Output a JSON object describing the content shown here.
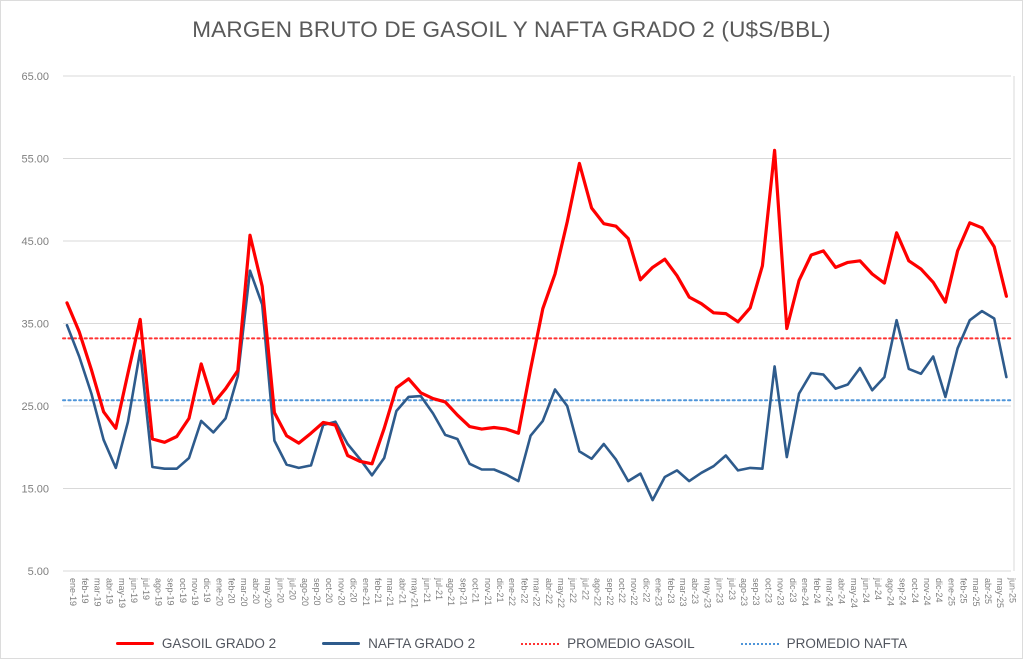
{
  "chart_data": {
    "type": "line",
    "title": "MARGEN BRUTO DE GASOIL Y NAFTA GRADO 2 (U$S/BBL)",
    "xlabel": "",
    "ylabel": "",
    "ylim": [
      5,
      65
    ],
    "ytick_step": 10,
    "ytick_labels": [
      "65.00",
      "55.00",
      "45.00",
      "35.00",
      "25.00",
      "15.00",
      "5.00"
    ],
    "grid": "horizontal",
    "legend_position": "bottom",
    "categories": [
      "ene-19",
      "feb-19",
      "mar-19",
      "abr-19",
      "may-19",
      "jun-19",
      "jul-19",
      "ago-19",
      "sep-19",
      "oct-19",
      "nov-19",
      "dic-19",
      "ene-20",
      "feb-20",
      "mar-20",
      "abr-20",
      "may-20",
      "jun-20",
      "jul-20",
      "ago-20",
      "sep-20",
      "oct-20",
      "nov-20",
      "dic-20",
      "ene-21",
      "feb-21",
      "mar-21",
      "abr-21",
      "may-21",
      "jun-21",
      "jul-21",
      "ago-21",
      "sep-21",
      "oct-21",
      "nov-21",
      "dic-21",
      "ene-22",
      "feb-22",
      "mar-22",
      "abr-22",
      "may-22",
      "jun-22",
      "jul-22",
      "ago-22",
      "sep-22",
      "oct-22",
      "nov-22",
      "dic-22",
      "ene-23",
      "feb-23",
      "mar-23",
      "abr-23",
      "may-23",
      "jun-23",
      "jul-23",
      "ago-23",
      "sep-23",
      "oct-23",
      "nov-23",
      "dic-23",
      "ene-24",
      "feb-24",
      "mar-24",
      "abr-24",
      "may-24",
      "jun-24",
      "jul-24",
      "ago-24",
      "sep-24",
      "oct-24",
      "nov-24",
      "dic-24",
      "ene-25",
      "feb-25",
      "mar-25",
      "abr-25",
      "may-25",
      "jun-25"
    ],
    "series": [
      {
        "name": "GASOIL GRADO 2",
        "color": "#ff0000",
        "style": "solid",
        "width": 3.2,
        "values": [
          37.5,
          34.0,
          29.4,
          24.3,
          22.3,
          29.0,
          35.5,
          21.0,
          20.6,
          21.3,
          23.5,
          30.1,
          25.3,
          27.1,
          29.3,
          45.7,
          39.5,
          24.2,
          21.4,
          20.5,
          21.7,
          23.0,
          22.7,
          19.0,
          18.3,
          18.0,
          22.3,
          27.2,
          28.3,
          26.6,
          25.9,
          25.5,
          23.9,
          22.5,
          22.2,
          22.4,
          22.2,
          21.7,
          29.5,
          36.8,
          41.0,
          47.3,
          54.4,
          49.0,
          47.1,
          46.8,
          45.3,
          40.3,
          41.8,
          42.8,
          40.8,
          38.2,
          37.4,
          36.3,
          36.2,
          35.2,
          36.9,
          42.0,
          56.0,
          34.4,
          40.2,
          43.3,
          43.8,
          41.8,
          42.4,
          42.6,
          41.0,
          39.9,
          46.0,
          42.6,
          41.6,
          40.0,
          37.6,
          43.8,
          47.2,
          46.6,
          44.3,
          38.3
        ]
      },
      {
        "name": "NAFTA GRADO 2",
        "color": "#2e5b8c",
        "style": "solid",
        "width": 2.6,
        "values": [
          34.8,
          31.0,
          26.5,
          20.9,
          17.5,
          23.1,
          31.7,
          17.6,
          17.4,
          17.4,
          18.7,
          23.2,
          21.8,
          23.5,
          28.6,
          41.4,
          37.3,
          20.8,
          17.9,
          17.5,
          17.8,
          22.7,
          23.1,
          20.4,
          18.6,
          16.6,
          18.7,
          24.4,
          26.1,
          26.2,
          24.1,
          21.5,
          21.0,
          18.0,
          17.3,
          17.3,
          16.7,
          15.9,
          21.4,
          23.2,
          27.0,
          25.0,
          19.5,
          18.6,
          20.4,
          18.5,
          15.9,
          16.8,
          13.6,
          16.4,
          17.2,
          15.9,
          16.9,
          17.7,
          19.0,
          17.2,
          17.5,
          17.4,
          29.8,
          18.8,
          26.5,
          29.0,
          28.8,
          27.1,
          27.6,
          29.6,
          26.9,
          28.5,
          35.4,
          29.5,
          28.9,
          31.0,
          26.1,
          32.0,
          35.4,
          36.5,
          35.6,
          28.5
        ]
      }
    ],
    "reference_lines": [
      {
        "name": "PROMEDIO GASOIL",
        "value": 33.2,
        "color": "#ff3333",
        "style": "dotted"
      },
      {
        "name": "PROMEDIO NAFTA",
        "value": 25.7,
        "color": "#4e95d9",
        "style": "dotted"
      }
    ],
    "legend": [
      {
        "label": "GASOIL GRADO 2",
        "swatch": "solid-thick",
        "color": "#ff0000"
      },
      {
        "label": "NAFTA GRADO 2",
        "swatch": "solid-thin",
        "color": "#2e5b8c"
      },
      {
        "label": "PROMEDIO GASOIL",
        "swatch": "dotted",
        "color": "#ff3333"
      },
      {
        "label": "PROMEDIO NAFTA",
        "swatch": "dotted",
        "color": "#4e95d9"
      }
    ],
    "colors": {
      "gridline": "#d9d9d9",
      "plot_border": "#d9d9d9",
      "title_text": "#595959",
      "axis_text": "#7f7f7f",
      "legend_text": "#51555e",
      "background": "#ffffff"
    }
  }
}
